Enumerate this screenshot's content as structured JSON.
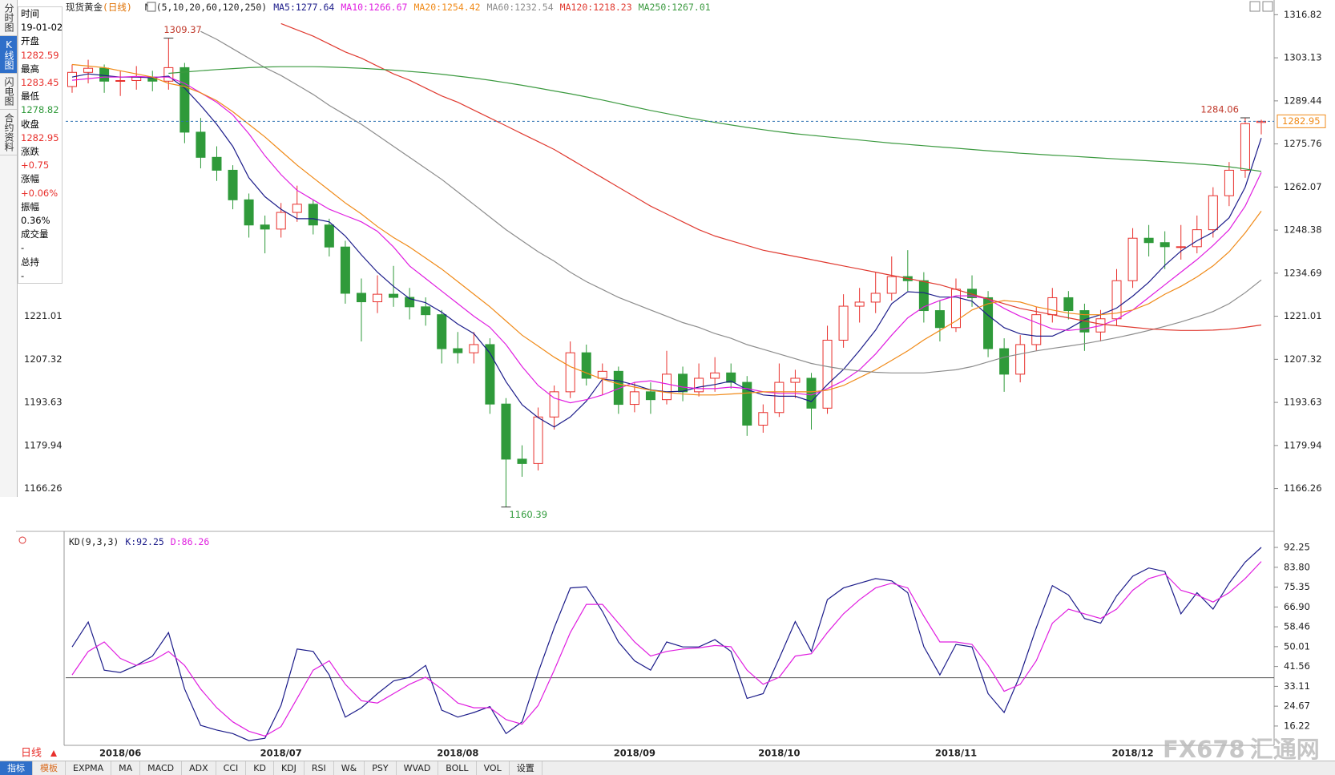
{
  "tabs": [
    "分时图",
    "K线图",
    "闪电图",
    "合约资料"
  ],
  "info": {
    "time_label": "时间",
    "time": "19-01-02",
    "open_label": "开盘",
    "high_label": "最高",
    "low_label": "最低",
    "close_label": "收盘",
    "change_label": "涨跌",
    "change": "+0.75",
    "pct_label": "涨幅",
    "pct": "+0.06%",
    "amp_label": "振幅",
    "amp": "0.36%",
    "volume_label": "成交量",
    "volume": "-",
    "hold_label": "总持",
    "hold": "-"
  },
  "period": "日线",
  "toolbar": [
    "指标",
    "模板",
    "EXPMA",
    "MA",
    "MACD",
    "ADX",
    "CCI",
    "KD",
    "KDJ",
    "RSI",
    "W&",
    "PSY",
    "WVAD",
    "BOLL",
    "VOL",
    "设置"
  ],
  "watermark": [
    "FX678",
    "汇通网"
  ],
  "chart_data": [
    {
      "type": "candlestick",
      "title": "现货黄金",
      "subtitle": "(日线)",
      "indicator": "MA(5,10,20,60,120,250)",
      "up_color": "#e8302c",
      "down_color": "#2f9a3a",
      "categories": [
        null,
        null,
        null,
        "2018/06",
        null,
        null,
        null,
        null,
        null,
        null,
        null,
        null,
        null,
        "2018/07",
        null,
        null,
        null,
        null,
        null,
        null,
        null,
        null,
        null,
        null,
        "2018/08",
        null,
        null,
        null,
        null,
        null,
        null,
        null,
        null,
        null,
        null,
        "2018/09",
        null,
        null,
        null,
        null,
        null,
        null,
        null,
        null,
        "2018/10",
        null,
        null,
        null,
        null,
        null,
        null,
        null,
        null,
        null,
        null,
        "2018/11",
        null,
        null,
        null,
        null,
        null,
        null,
        null,
        null,
        null,
        null,
        "2018/12",
        null,
        null,
        null,
        null,
        null,
        null,
        null,
        null
      ],
      "open": [
        1294,
        1298.5,
        1299.8,
        1295.7,
        1295.9,
        1297,
        1295.7,
        1300,
        1279.5,
        1271.5,
        1267.4,
        1258,
        1250,
        1248.7,
        1254,
        1256.6,
        1250,
        1243,
        1228.3,
        1225.6,
        1228,
        1227,
        1224,
        1221.5,
        1210.7,
        1209.4,
        1212,
        1193.1,
        1175.6,
        1174.2,
        1189,
        1197,
        1209.4,
        1201.3,
        1203.5,
        1193,
        1197,
        1194.5,
        1202.6,
        1197,
        1201.3,
        1203,
        1200,
        1186.4,
        1190.4,
        1200,
        1201.3,
        1191.8,
        1213.4,
        1224.2,
        1225.5,
        1228.3,
        1233.6,
        1232.3,
        1222.8,
        1217.4,
        1229.6,
        1226.9,
        1210.7,
        1202.6,
        1212,
        1221.5,
        1226.9,
        1222.8,
        1216,
        1220.2,
        1232.3,
        1245.8,
        1244.4,
        1243.1,
        1243.1,
        1248.5,
        1259.3,
        1267.4,
        1282.59
      ],
      "high": [
        1301,
        1302.5,
        1301,
        1299,
        1300.5,
        1299,
        1309.37,
        1301.5,
        1284,
        1275,
        1269,
        1260,
        1253,
        1257,
        1262.5,
        1258,
        1252,
        1245,
        1233,
        1234,
        1237,
        1230,
        1227,
        1223,
        1216,
        1216,
        1214,
        1195,
        1180,
        1192,
        1199,
        1213,
        1212,
        1206,
        1205,
        1200,
        1200,
        1210,
        1205,
        1206,
        1208,
        1206,
        1202,
        1193,
        1206,
        1204,
        1203,
        1218,
        1228,
        1230,
        1235,
        1240,
        1242,
        1235,
        1226,
        1233,
        1234,
        1229,
        1214,
        1215,
        1224,
        1230,
        1229,
        1225,
        1223,
        1236,
        1249,
        1250,
        1248,
        1250,
        1253,
        1262,
        1270,
        1284.06,
        1283.45
      ],
      "low": [
        1292,
        1295,
        1292,
        1291,
        1293,
        1292.5,
        1293,
        1276,
        1268,
        1264,
        1255,
        1246,
        1241,
        1246,
        1251,
        1247,
        1240,
        1225,
        1213,
        1222,
        1224,
        1220,
        1218,
        1206,
        1206,
        1206,
        1190,
        1160.39,
        1170,
        1172,
        1185,
        1195,
        1199,
        1196,
        1190,
        1190.5,
        1190,
        1193,
        1194,
        1195.5,
        1197,
        1198,
        1183,
        1184,
        1189,
        1195,
        1185,
        1190,
        1211,
        1219,
        1222,
        1226,
        1229,
        1219,
        1213,
        1216,
        1224,
        1208,
        1197,
        1200,
        1210,
        1219,
        1220,
        1210,
        1213,
        1218,
        1230,
        1240,
        1236,
        1239,
        1241,
        1246,
        1256,
        1265,
        1278.82
      ],
      "close": [
        1298.5,
        1299.8,
        1295.7,
        1295.9,
        1297,
        1295.7,
        1300,
        1279.5,
        1271.5,
        1267.4,
        1258,
        1250,
        1248.7,
        1254,
        1256.6,
        1250,
        1243,
        1228.3,
        1225.6,
        1228,
        1227,
        1224,
        1221.5,
        1210.7,
        1209.4,
        1212,
        1193.1,
        1175.6,
        1174.2,
        1189,
        1197,
        1209.4,
        1201.3,
        1203.5,
        1193,
        1197,
        1194.5,
        1202.6,
        1197,
        1201.3,
        1203,
        1200,
        1186.4,
        1190.4,
        1200,
        1201.3,
        1191.8,
        1213.4,
        1224.2,
        1225.5,
        1228.3,
        1233.6,
        1232.3,
        1222.8,
        1217.4,
        1229.6,
        1226.9,
        1210.7,
        1202.6,
        1212,
        1221.5,
        1226.9,
        1222.8,
        1216,
        1220.2,
        1232.3,
        1245.8,
        1244.4,
        1243.1,
        1243.1,
        1248.5,
        1259.3,
        1267.4,
        1282.2,
        1282.95
      ],
      "series": [
        {
          "name": "MA5:",
          "color": "#1c1c8a",
          "values": [
            1297,
            1298,
            1297.5,
            1297,
            1297,
            1296.8,
            1297.3,
            1293.5,
            1288,
            1282,
            1275,
            1265,
            1259,
            1255,
            1252,
            1252,
            1251,
            1246.5,
            1240.5,
            1235,
            1230.5,
            1226.6,
            1225.3,
            1222.3,
            1218.5,
            1215.5,
            1209.3,
            1200.2,
            1192.9,
            1188.8,
            1185.8,
            1189,
            1194,
            1201,
            1200.5,
            1199.2,
            1197.6,
            1197,
            1197.2,
            1198.5,
            1199.3,
            1200.4,
            1197.7,
            1196,
            1195.6,
            1195.6,
            1193.9,
            1199.3,
            1204.1,
            1210.1,
            1216.6,
            1225,
            1228.8,
            1228.5,
            1227.1,
            1227.1,
            1225.8,
            1221.3,
            1217.4,
            1215.4,
            1214.7,
            1214.7,
            1217,
            1219.9,
            1221.5,
            1223.6,
            1227.4,
            1231.8,
            1237.2,
            1241.7,
            1245,
            1247.7,
            1252.3,
            1262,
            1277.64
          ]
        },
        {
          "name": "MA10:",
          "color": "#e01ee0",
          "values": [
            1296,
            1296.5,
            1297,
            1297,
            1297.2,
            1297,
            1297,
            1295,
            1292,
            1289,
            1285,
            1279,
            1272,
            1266,
            1261,
            1258,
            1255,
            1253,
            1251,
            1248,
            1243,
            1237,
            1233,
            1229,
            1225,
            1221,
            1217.5,
            1212,
            1205,
            1199,
            1195,
            1193.5,
            1194.5,
            1196,
            1198,
            1200,
            1200.5,
            1199.5,
            1198.5,
            1198,
            1198,
            1198.5,
            1198,
            1197,
            1196.5,
            1196.5,
            1196,
            1198,
            1200.5,
            1204,
            1209,
            1215,
            1220.5,
            1224,
            1226,
            1227.5,
            1227.5,
            1226.5,
            1223.5,
            1221,
            1219,
            1217,
            1216.5,
            1217,
            1218,
            1220,
            1223,
            1227,
            1231,
            1235,
            1239,
            1243.5,
            1248.5,
            1256,
            1266.67
          ]
        },
        {
          "name": "MA20:",
          "color": "#f08a18",
          "values": [
            1301,
            1300.5,
            1300,
            1299,
            1298,
            1297,
            1295,
            1294,
            1292,
            1289.5,
            1286,
            1282,
            1278,
            1273.5,
            1269,
            1265,
            1261,
            1257,
            1253.5,
            1249.5,
            1246,
            1243,
            1239.5,
            1236,
            1232,
            1228,
            1224,
            1219.5,
            1215,
            1211.5,
            1208,
            1205,
            1203,
            1201,
            1199.5,
            1198.5,
            1197.5,
            1196.8,
            1196.3,
            1196,
            1196,
            1196.3,
            1196.6,
            1197,
            1197,
            1197,
            1197,
            1197.5,
            1199,
            1201.5,
            1204,
            1207,
            1210,
            1213.5,
            1216.5,
            1219.5,
            1223,
            1225,
            1226,
            1225.5,
            1224,
            1223,
            1222,
            1221.5,
            1221.5,
            1222,
            1223,
            1225,
            1228,
            1230.5,
            1233.5,
            1237,
            1241.5,
            1247.5,
            1254.42
          ]
        },
        {
          "name": "MA60:",
          "color": "#8c8c8c",
          "values": [
            null,
            null,
            null,
            null,
            null,
            null,
            null,
            null,
            1311.5,
            1309,
            1306,
            1303,
            1300,
            1297.5,
            1294.5,
            1291.5,
            1288,
            1285,
            1282,
            1278.5,
            1275,
            1271.5,
            1268,
            1264.5,
            1260.5,
            1256.5,
            1252.5,
            1248.5,
            1245,
            1241.5,
            1238.5,
            1235,
            1232,
            1229.5,
            1227,
            1225,
            1223,
            1221,
            1219,
            1217.5,
            1215.5,
            1214,
            1212,
            1210.5,
            1209,
            1207.5,
            1206,
            1205,
            1204.2,
            1203.6,
            1203.2,
            1203,
            1203,
            1203,
            1203.5,
            1204,
            1205,
            1206.5,
            1208,
            1209,
            1210,
            1210.8,
            1211.5,
            1212.3,
            1213.2,
            1214.2,
            1215.3,
            1216.5,
            1217.8,
            1219.2,
            1220.8,
            1222.5,
            1225,
            1228.5,
            1232.54
          ]
        },
        {
          "name": "MA120:",
          "color": "#e03a30",
          "values": [
            null,
            null,
            null,
            null,
            null,
            null,
            null,
            null,
            null,
            null,
            null,
            null,
            null,
            1314,
            1312,
            1310,
            1307.5,
            1305,
            1303,
            1300.5,
            1298,
            1296,
            1293.5,
            1291,
            1289,
            1286.5,
            1284,
            1281.5,
            1279,
            1276.5,
            1274,
            1271,
            1268,
            1265,
            1262,
            1259,
            1256,
            1253.5,
            1251,
            1248.5,
            1246.5,
            1245,
            1243.5,
            1242,
            1241,
            1240,
            1239,
            1238,
            1237,
            1236,
            1235,
            1234,
            1233,
            1232,
            1231,
            1229.5,
            1228,
            1226.5,
            1225,
            1223.5,
            1222.5,
            1221.5,
            1220.5,
            1219.5,
            1218.5,
            1218,
            1217.5,
            1217,
            1216.7,
            1216.5,
            1216.5,
            1216.6,
            1216.9,
            1217.5,
            1218.23
          ]
        },
        {
          "name": "MA250:",
          "color": "#3c9a40",
          "values": [
            null,
            null,
            null,
            null,
            null,
            null,
            1298.2,
            1298.6,
            1299,
            1299.4,
            1299.7,
            1300,
            1300.2,
            1300.3,
            1300.3,
            1300.3,
            1300.2,
            1300,
            1299.8,
            1299.5,
            1299.2,
            1298.8,
            1298.4,
            1297.9,
            1297.3,
            1296.7,
            1296,
            1295.2,
            1294.4,
            1293.5,
            1292.6,
            1291.7,
            1290.7,
            1289.7,
            1288.6,
            1287.5,
            1286.4,
            1285.4,
            1284.4,
            1283.5,
            1282.6,
            1281.8,
            1281,
            1280.3,
            1279.6,
            1279,
            1278.5,
            1278,
            1277.5,
            1277,
            1276.5,
            1276,
            1275.6,
            1275.2,
            1274.8,
            1274.4,
            1274,
            1273.6,
            1273.2,
            1272.8,
            1272.5,
            1272.2,
            1271.9,
            1271.6,
            1271.3,
            1271,
            1270.7,
            1270.4,
            1270.1,
            1269.8,
            1269.4,
            1269,
            1268.5,
            1267.8,
            1267.01
          ]
        }
      ],
      "ylim": [
        1155.2,
        1319.2
      ],
      "yticks": [
        1316.82,
        1303.13,
        1289.44,
        1275.76,
        1262.07,
        1248.38,
        1234.69,
        1221.01,
        1207.32,
        1193.63,
        1179.94,
        1166.26
      ]
    },
    {
      "type": "line",
      "title": "KD(9,3,3)",
      "reference_line": 36.8,
      "series": [
        {
          "name": "K:",
          "color": "#1c1c8a",
          "values": [
            49.9,
            60.5,
            40,
            39,
            42,
            46,
            56,
            32,
            16.5,
            14.5,
            13,
            10,
            11,
            25,
            49,
            48,
            38,
            20,
            24,
            30,
            35.4,
            37,
            42,
            23,
            20,
            22,
            24.5,
            13,
            18,
            39,
            58,
            75,
            75.5,
            65,
            52,
            44,
            40,
            52,
            49.9,
            49.9,
            53,
            48,
            28,
            30,
            45,
            60.7,
            48,
            70,
            75,
            77,
            79,
            78,
            73,
            50,
            38,
            51,
            49.9,
            30,
            22,
            38,
            58,
            76,
            72,
            62,
            60,
            71.6,
            80,
            83.5,
            82,
            64,
            73,
            66,
            77,
            86,
            92.25
          ]
        },
        {
          "name": "D:",
          "color": "#e01ee0",
          "values": [
            38,
            48,
            52,
            45,
            42,
            44,
            48,
            42,
            32,
            24,
            18,
            14,
            12,
            16,
            28,
            40,
            44,
            34,
            27,
            26,
            30,
            34,
            37,
            32,
            26,
            24,
            24,
            19,
            17,
            25,
            40,
            56,
            68,
            68,
            60,
            52,
            46,
            48,
            49,
            49.5,
            50.5,
            50,
            40,
            34,
            37,
            46,
            47,
            56,
            64,
            70,
            75,
            77,
            75,
            63,
            52,
            52,
            51,
            42,
            31,
            34,
            44,
            60,
            66,
            64,
            62,
            66,
            74,
            79,
            81,
            74,
            72,
            69,
            73,
            79,
            86.26
          ]
        }
      ],
      "ylim": [
        8,
        96.7
      ],
      "yticks": [
        92.25,
        {
          "value": 83.8,
          "label": "83.80"
        },
        75.35,
        {
          "value": 66.9,
          "label": "66.90"
        },
        58.46,
        50.01,
        41.56,
        33.11,
        24.67,
        16.22
      ]
    }
  ]
}
